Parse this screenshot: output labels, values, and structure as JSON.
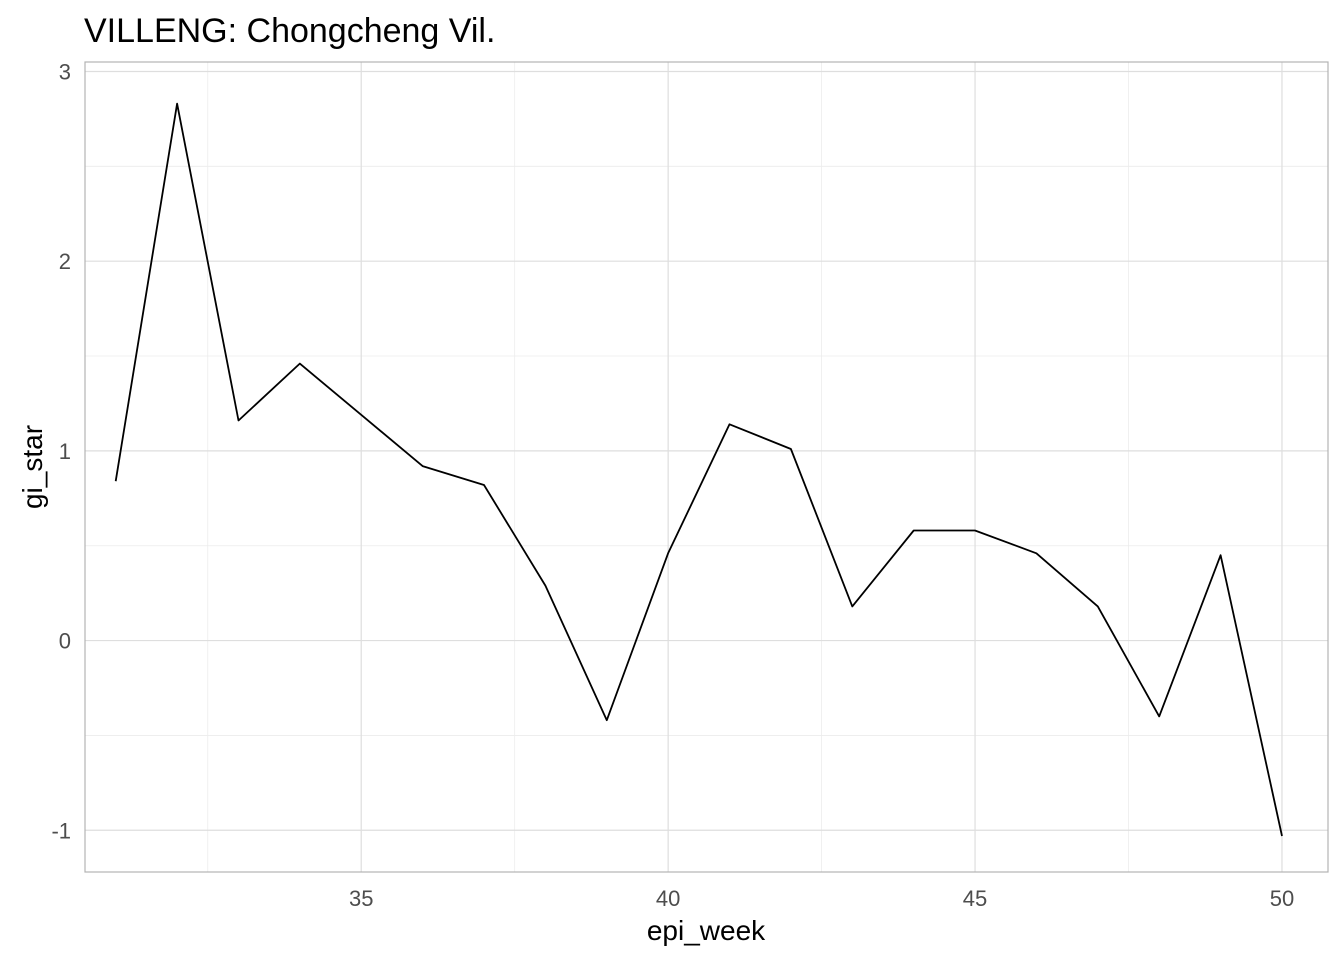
{
  "chart_data": {
    "type": "line",
    "title": "VILLENG: Chongcheng Vil.",
    "xlabel": "epi_week",
    "ylabel": "gi_star",
    "xlim": [
      30.5,
      50.75
    ],
    "ylim": [
      -1.22,
      3.05
    ],
    "x_ticks": [
      35,
      40,
      45,
      50
    ],
    "y_ticks": [
      -1,
      0,
      1,
      2,
      3
    ],
    "x_tick_labels": [
      "35",
      "40",
      "45",
      "50"
    ],
    "y_tick_labels": [
      "-1",
      "0",
      "1",
      "2",
      "3"
    ],
    "grid": true,
    "line_color": "#000000",
    "x": [
      31,
      32,
      33,
      34,
      35,
      36,
      37,
      38,
      39,
      40,
      41,
      42,
      43,
      44,
      45,
      46,
      47,
      48,
      49,
      50
    ],
    "y": [
      0.84,
      2.83,
      1.16,
      1.46,
      1.19,
      0.92,
      0.82,
      0.29,
      -0.42,
      0.46,
      1.14,
      1.01,
      0.18,
      0.58,
      0.58,
      0.46,
      0.18,
      -0.4,
      0.45,
      -1.03
    ]
  }
}
